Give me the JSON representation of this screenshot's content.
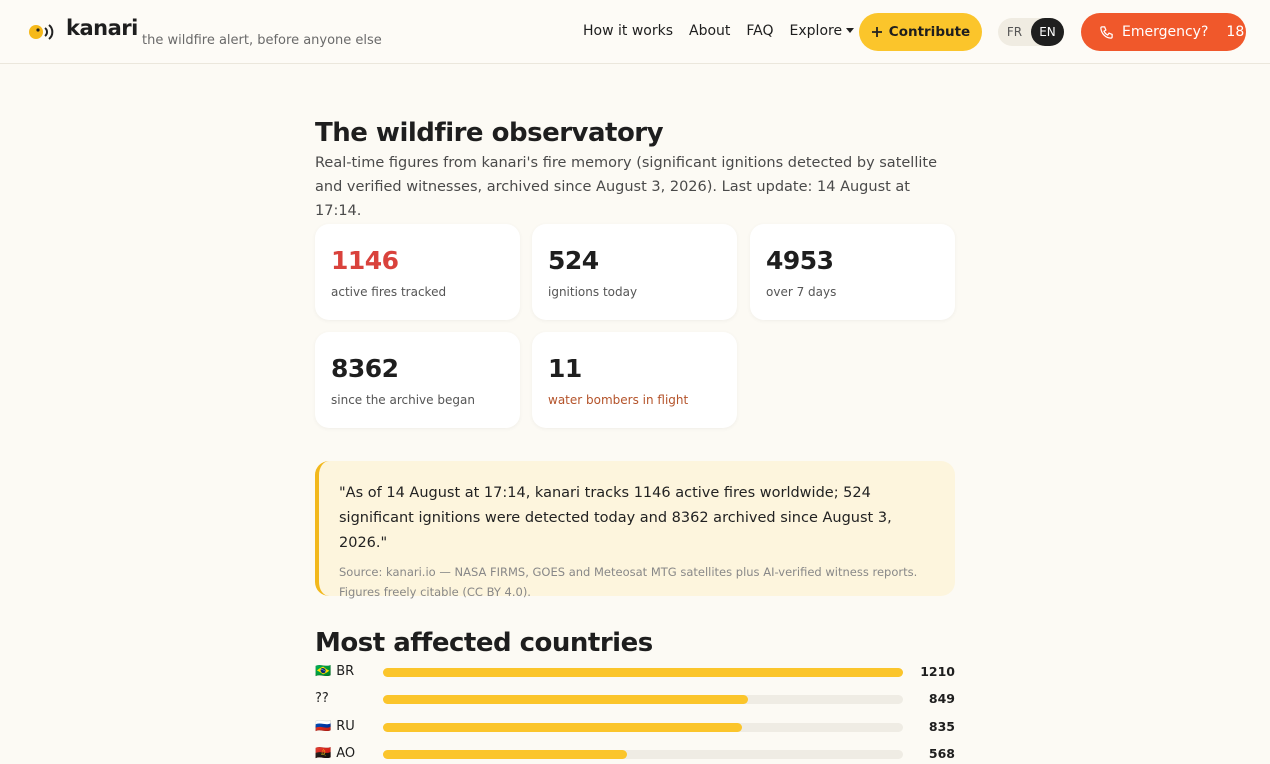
{
  "header": {
    "brand": "kanari",
    "tagline": "the wildfire alert, before anyone else",
    "nav": [
      "How it works",
      "About",
      "FAQ",
      "Explore"
    ],
    "contribute": "Contribute",
    "languages": [
      "FR",
      "EN"
    ],
    "emergency": {
      "label": "Emergency?",
      "number": "18"
    }
  },
  "main": {
    "title": "The wildfire observatory",
    "intro": "Real-time figures from kanari's fire memory (significant ignitions detected by satellite and verified witnesses, archived since August 3, 2026). Last update: 14 August at 17:14.",
    "stats": [
      {
        "value": 1146,
        "label": "active fires tracked"
      },
      {
        "value": 524,
        "label": "ignitions today"
      },
      {
        "value": 4953,
        "label": "over 7 days"
      },
      {
        "value": 8362,
        "label": "since the archive began"
      },
      {
        "value": 11,
        "label": "water bombers in flight"
      }
    ],
    "quote": {
      "text": "\"As of 14 August at 17:14, kanari tracks 1146 active fires worldwide; 524 significant ignitions were detected today and 8362 archived since August 3, 2026.\"",
      "source": "Source: kanari.io — NASA FIRMS, GOES and Meteosat MTG satellites plus AI-verified witness reports. Figures freely citable (CC BY 4.0)."
    },
    "countries": {
      "title": "Most affected countries",
      "rows": [
        {
          "flag": "🇧🇷",
          "code": "BR",
          "value": 1210
        },
        {
          "code": "??",
          "value": 849
        },
        {
          "flag": "🇷🇺",
          "code": "RU",
          "value": 835
        },
        {
          "flag": "🇦🇴",
          "code": "AO",
          "value": 568
        }
      ]
    }
  }
}
